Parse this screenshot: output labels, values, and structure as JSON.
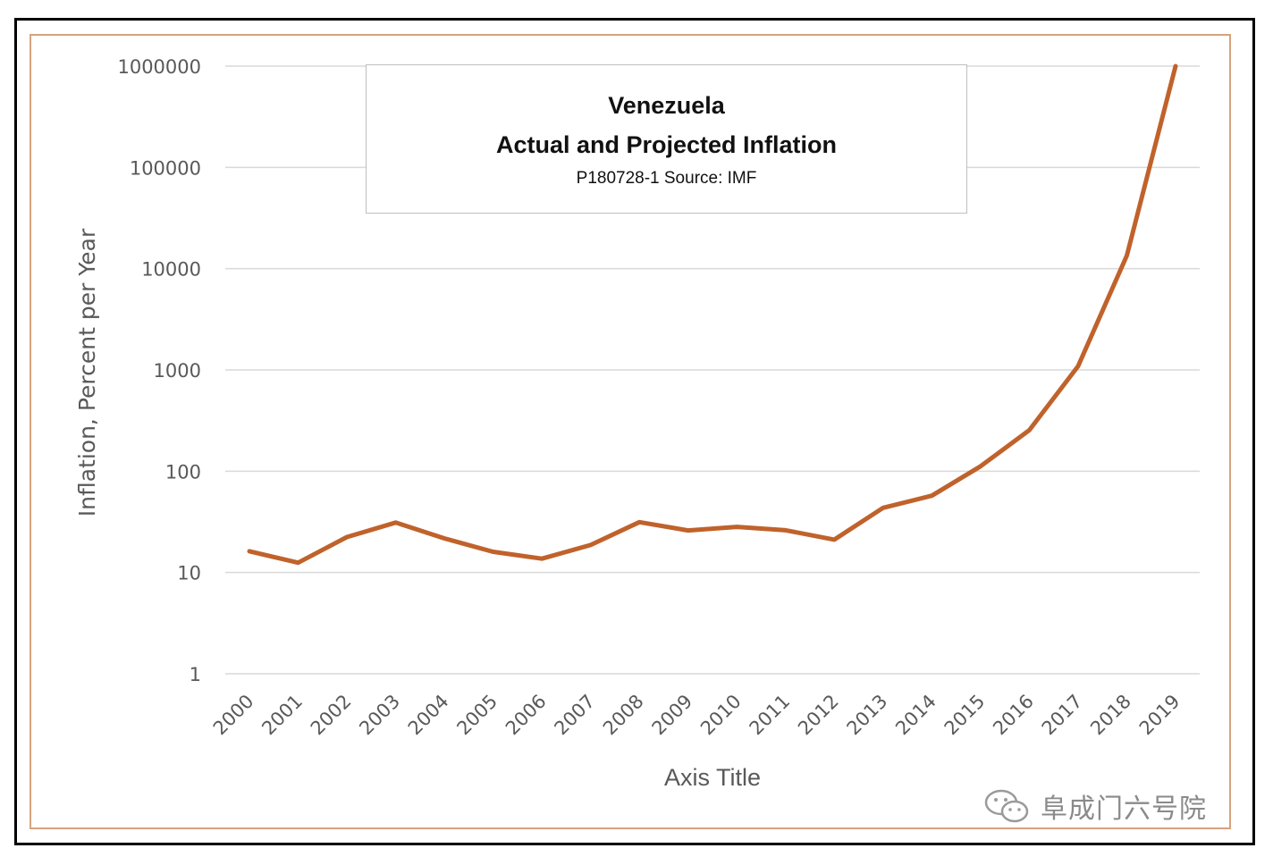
{
  "chart_data": {
    "type": "line",
    "title": "Venezuela",
    "subtitle": "Actual and Projected Inflation",
    "source_note": "P180728-1 Source: IMF",
    "xlabel": "Axis Title",
    "ylabel": "Inflation, Percent per Year",
    "y_scale": "log",
    "ylim": [
      1,
      1000000
    ],
    "y_ticks": [
      "1",
      "10",
      "100",
      "1000",
      "10000",
      "100000",
      "1000000"
    ],
    "y_tick_values": [
      1,
      10,
      100,
      1000,
      10000,
      100000,
      1000000
    ],
    "categories": [
      "2000",
      "2001",
      "2002",
      "2003",
      "2004",
      "2005",
      "2006",
      "2007",
      "2008",
      "2009",
      "2010",
      "2011",
      "2012",
      "2013",
      "2014",
      "2015",
      "2016",
      "2017",
      "2018",
      "2019"
    ],
    "series": [
      {
        "name": "Inflation",
        "color": "#c0622b",
        "values": [
          16.2,
          12.5,
          22.4,
          31.1,
          21.7,
          16.0,
          13.7,
          18.7,
          31.4,
          26.0,
          28.2,
          26.1,
          21.1,
          43.5,
          57.3,
          111.8,
          254.4,
          1087.5,
          13475,
          1000000
        ]
      }
    ],
    "grid": true,
    "legend": "none"
  },
  "watermark": {
    "text": "阜成门六号院",
    "icon": "wechat-icon"
  }
}
